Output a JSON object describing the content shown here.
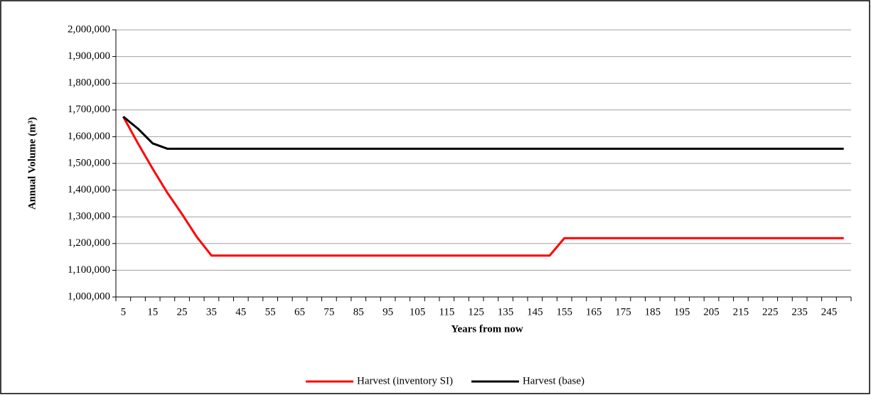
{
  "chart_data": {
    "type": "line",
    "x_label": "Years from now",
    "y_label": "Annual Volume (m³)",
    "categories": [
      5,
      null,
      15,
      null,
      25,
      null,
      35,
      null,
      45,
      null,
      55,
      null,
      65,
      null,
      75,
      null,
      85,
      null,
      95,
      null,
      105,
      null,
      115,
      null,
      125,
      null,
      135,
      null,
      145,
      null,
      155,
      null,
      165,
      null,
      175,
      null,
      185,
      null,
      195,
      null,
      205,
      null,
      215,
      null,
      225,
      null,
      235,
      null,
      245,
      null
    ],
    "series": [
      {
        "name": "Harvest (inventory SI)",
        "color": "#ff0000",
        "values": [
          1675000,
          1575000,
          1480000,
          1390000,
          1310000,
          1225000,
          1155000,
          1155000,
          1155000,
          1155000,
          1155000,
          1155000,
          1155000,
          1155000,
          1155000,
          1155000,
          1155000,
          1155000,
          1155000,
          1155000,
          1155000,
          1155000,
          1155000,
          1155000,
          1155000,
          1155000,
          1155000,
          1155000,
          1155000,
          1155000,
          1220000,
          1220000,
          1220000,
          1220000,
          1220000,
          1220000,
          1220000,
          1220000,
          1220000,
          1220000,
          1220000,
          1220000,
          1220000,
          1220000,
          1220000,
          1220000,
          1220000,
          1220000,
          1220000,
          1220000
        ]
      },
      {
        "name": "Harvest (base)",
        "color": "#000000",
        "values": [
          1675000,
          1630000,
          1575000,
          1555000,
          1555000,
          1555000,
          1555000,
          1555000,
          1555000,
          1555000,
          1555000,
          1555000,
          1555000,
          1555000,
          1555000,
          1555000,
          1555000,
          1555000,
          1555000,
          1555000,
          1555000,
          1555000,
          1555000,
          1555000,
          1555000,
          1555000,
          1555000,
          1555000,
          1555000,
          1555000,
          1555000,
          1555000,
          1555000,
          1555000,
          1555000,
          1555000,
          1555000,
          1555000,
          1555000,
          1555000,
          1555000,
          1555000,
          1555000,
          1555000,
          1555000,
          1555000,
          1555000,
          1555000,
          1555000,
          1555000
        ]
      }
    ],
    "ylim": [
      1000000,
      2000000
    ],
    "yticks": [
      {
        "value": 1000000,
        "label": "1,000,000"
      },
      {
        "value": 1100000,
        "label": "1,100,000"
      },
      {
        "value": 1200000,
        "label": "1,200,000"
      },
      {
        "value": 1300000,
        "label": "1,300,000"
      },
      {
        "value": 1400000,
        "label": "1,400,000"
      },
      {
        "value": 1500000,
        "label": "1,500,000"
      },
      {
        "value": 1600000,
        "label": "1,600,000"
      },
      {
        "value": 1700000,
        "label": "1,700,000"
      },
      {
        "value": 1800000,
        "label": "1,800,000"
      },
      {
        "value": 1900000,
        "label": "1,900,000"
      },
      {
        "value": 2000000,
        "label": "2,000,000"
      }
    ],
    "grid": true,
    "legend": "bottom"
  }
}
